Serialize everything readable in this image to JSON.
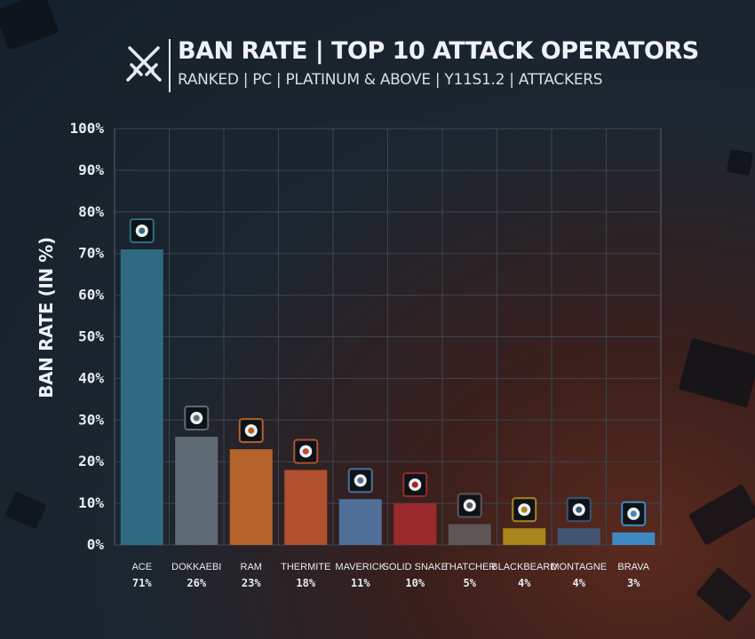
{
  "header": {
    "title": "BAN RATE | TOP 10 ATTACK OPERATORS",
    "subtitle": "RANKED | PC | PLATINUM & ABOVE | Y11S1.2 | ATTACKERS",
    "icon": "crossed-swords-icon"
  },
  "colors": {
    "background": "#14202b",
    "grid": "#3a4550",
    "text": "#e6ebf0"
  },
  "chart_data": {
    "type": "bar",
    "ylabel": "BAN RATE (IN %)",
    "xlabel": "",
    "ylim": [
      0,
      100
    ],
    "yticks": [
      0,
      10,
      20,
      30,
      40,
      50,
      60,
      70,
      80,
      90,
      100
    ],
    "ytick_suffix": "%",
    "grid": true,
    "categories": [
      "ACE",
      "DOKKAEBI",
      "RAM",
      "THERMITE",
      "MAVERICK",
      "SOLID SNAKE",
      "THATCHER",
      "BLACKBEARD",
      "MONTAGNE",
      "BRAVA"
    ],
    "values": [
      71,
      26,
      23,
      18,
      11,
      10,
      5,
      4,
      4,
      3
    ],
    "value_labels": [
      "71%",
      "26%",
      "23%",
      "18%",
      "11%",
      "10%",
      "5%",
      "4%",
      "4%",
      "3%"
    ],
    "bar_colors": [
      "#2f6b80",
      "#5e6a74",
      "#b4622a",
      "#b0502e",
      "#4f6f98",
      "#9a2a2c",
      "#5e5556",
      "#a8861c",
      "#3f5572",
      "#3f88c4"
    ],
    "operator_icons": [
      "ace-operator-icon",
      "dokkaebi-operator-icon",
      "ram-operator-icon",
      "thermite-operator-icon",
      "maverick-operator-icon",
      "solid-snake-operator-icon",
      "thatcher-operator-icon",
      "blackbeard-operator-icon",
      "montagne-operator-icon",
      "brava-operator-icon"
    ]
  }
}
